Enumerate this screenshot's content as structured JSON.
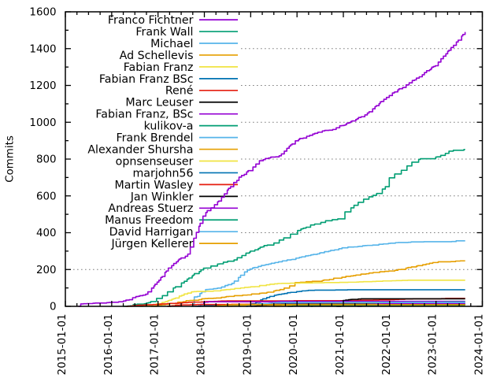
{
  "chart_data": {
    "type": "line",
    "title": "",
    "xlabel": "",
    "ylabel": "Commits",
    "xlim": [
      "2015-01-01",
      "2024-01-01"
    ],
    "ylim": [
      0,
      1600
    ],
    "grid": true,
    "grid_style": "dotted",
    "legend_position": "top-left-inside",
    "x_tick_labels": [
      "2015-01-01",
      "2016-01-01",
      "2017-01-01",
      "2018-01-01",
      "2019-01-01",
      "2020-01-01",
      "2021-01-01",
      "2022-01-01",
      "2023-01-01",
      "2024-01-01"
    ],
    "y_tick_labels": [
      "0",
      "200",
      "400",
      "600",
      "800",
      "1000",
      "1200",
      "1400",
      "1600"
    ],
    "x_minor_ticks_per_year": 4,
    "y_minor_tick_step": 100,
    "data_end_year": 2023.63,
    "series": [
      {
        "name": "Franco Fichtner",
        "color": "#9400d3",
        "jitter": 2.2,
        "seed": 11,
        "points": [
          [
            2015.28,
            0
          ],
          [
            2015.33,
            12
          ],
          [
            2015.6,
            16
          ],
          [
            2016.15,
            22
          ],
          [
            2016.4,
            40
          ],
          [
            2016.75,
            70
          ],
          [
            2017.0,
            135
          ],
          [
            2017.2,
            200
          ],
          [
            2017.5,
            264
          ],
          [
            2017.62,
            274
          ],
          [
            2017.8,
            385
          ],
          [
            2018.0,
            505
          ],
          [
            2018.3,
            570
          ],
          [
            2018.5,
            635
          ],
          [
            2018.75,
            700
          ],
          [
            2019.0,
            745
          ],
          [
            2019.2,
            790
          ],
          [
            2019.35,
            806
          ],
          [
            2019.6,
            815
          ],
          [
            2019.75,
            850
          ],
          [
            2020.0,
            905
          ],
          [
            2020.5,
            948
          ],
          [
            2020.8,
            965
          ],
          [
            2021.0,
            985
          ],
          [
            2021.15,
            1000
          ],
          [
            2021.5,
            1045
          ],
          [
            2021.75,
            1100
          ],
          [
            2022.0,
            1147
          ],
          [
            2022.5,
            1226
          ],
          [
            2023.0,
            1311
          ],
          [
            2023.31,
            1400
          ],
          [
            2023.5,
            1455
          ],
          [
            2023.63,
            1490
          ]
        ],
        "step": 3.6
      },
      {
        "name": "Frank Wall",
        "color": "#009e73",
        "jitter": 2.6,
        "seed": 22,
        "points": [
          [
            2016.24,
            0
          ],
          [
            2016.5,
            8
          ],
          [
            2016.8,
            20
          ],
          [
            2017.0,
            45
          ],
          [
            2017.3,
            95
          ],
          [
            2017.6,
            145
          ],
          [
            2017.94,
            200
          ],
          [
            2018.2,
            225
          ],
          [
            2018.45,
            240
          ],
          [
            2018.6,
            250
          ],
          [
            2018.8,
            272
          ],
          [
            2019.0,
            300
          ],
          [
            2019.5,
            345
          ],
          [
            2019.8,
            385
          ],
          [
            2020.0,
            410
          ],
          [
            2020.3,
            440
          ],
          [
            2020.6,
            465
          ],
          [
            2020.75,
            470
          ],
          [
            2020.95,
            475
          ],
          [
            2021.05,
            520
          ],
          [
            2021.3,
            560
          ],
          [
            2021.5,
            590
          ],
          [
            2021.7,
            610
          ],
          [
            2021.9,
            645
          ],
          [
            2022.0,
            700
          ],
          [
            2022.2,
            730
          ],
          [
            2022.4,
            770
          ],
          [
            2022.55,
            800
          ],
          [
            2022.95,
            803
          ],
          [
            2023.1,
            822
          ],
          [
            2023.25,
            840
          ],
          [
            2023.4,
            848
          ],
          [
            2023.63,
            852
          ]
        ],
        "step": 8.0
      },
      {
        "name": "Michael",
        "color": "#56b4e9",
        "jitter": 1.1,
        "seed": 33,
        "points": [
          [
            2017.72,
            0
          ],
          [
            2017.78,
            50
          ],
          [
            2017.85,
            55
          ],
          [
            2017.98,
            87
          ],
          [
            2018.3,
            100
          ],
          [
            2018.6,
            125
          ],
          [
            2018.75,
            160
          ],
          [
            2018.9,
            195
          ],
          [
            2019.0,
            205
          ],
          [
            2019.35,
            228
          ],
          [
            2019.7,
            246
          ],
          [
            2020.0,
            262
          ],
          [
            2020.5,
            290
          ],
          [
            2021.0,
            318
          ],
          [
            2021.4,
            327
          ],
          [
            2021.9,
            340
          ],
          [
            2022.4,
            349
          ],
          [
            2023.0,
            351
          ],
          [
            2023.38,
            351
          ],
          [
            2023.42,
            356
          ],
          [
            2023.63,
            356
          ]
        ],
        "step": 4.5
      },
      {
        "name": "Ad Schellevis",
        "color": "#e69f00",
        "jitter": 1.3,
        "seed": 44,
        "points": [
          [
            2016.85,
            0
          ],
          [
            2017.0,
            6
          ],
          [
            2017.3,
            15
          ],
          [
            2017.6,
            30
          ],
          [
            2018.0,
            40
          ],
          [
            2018.6,
            55
          ],
          [
            2019.0,
            65
          ],
          [
            2019.5,
            82
          ],
          [
            2019.75,
            100
          ],
          [
            2019.95,
            128
          ],
          [
            2020.45,
            137
          ],
          [
            2021.0,
            160
          ],
          [
            2021.5,
            178
          ],
          [
            2022.2,
            200
          ],
          [
            2022.6,
            220
          ],
          [
            2023.0,
            240
          ],
          [
            2023.3,
            244
          ],
          [
            2023.63,
            247
          ]
        ],
        "step": 6.5
      },
      {
        "name": "Fabian Franz",
        "color": "#f0e442",
        "jitter": 1.0,
        "seed": 55,
        "points": [
          [
            2016.6,
            0
          ],
          [
            2016.8,
            5
          ],
          [
            2017.0,
            15
          ],
          [
            2017.24,
            32
          ],
          [
            2017.5,
            60
          ],
          [
            2017.7,
            78
          ],
          [
            2017.8,
            80
          ],
          [
            2018.2,
            82
          ],
          [
            2018.5,
            92
          ],
          [
            2018.8,
            100
          ],
          [
            2019.0,
            105
          ],
          [
            2019.4,
            118
          ],
          [
            2019.6,
            124
          ],
          [
            2020.0,
            126
          ],
          [
            2020.5,
            128
          ],
          [
            2021.0,
            130
          ],
          [
            2021.5,
            133
          ],
          [
            2022.0,
            138
          ],
          [
            2022.4,
            142
          ],
          [
            2023.63,
            142
          ]
        ],
        "step": 5.0
      },
      {
        "name": "Fabian Franz BSc",
        "color": "#0072b2",
        "jitter": 0.9,
        "seed": 66,
        "points": [
          [
            2018.9,
            0
          ],
          [
            2019.1,
            20
          ],
          [
            2019.3,
            45
          ],
          [
            2019.6,
            65
          ],
          [
            2019.9,
            76
          ],
          [
            2020.2,
            86
          ],
          [
            2020.6,
            88
          ],
          [
            2021.26,
            90
          ],
          [
            2023.63,
            90
          ]
        ],
        "step": 4.0
      },
      {
        "name": "René",
        "color": "#e51e10",
        "jitter": 0.5,
        "seed": 77,
        "points": [
          [
            2016.3,
            0
          ],
          [
            2016.6,
            6
          ],
          [
            2017.0,
            12
          ],
          [
            2017.5,
            19
          ],
          [
            2018.0,
            25
          ],
          [
            2018.5,
            30
          ],
          [
            2019.0,
            30
          ],
          [
            2021.0,
            31
          ],
          [
            2021.64,
            33
          ],
          [
            2022.0,
            36
          ],
          [
            2022.5,
            41
          ],
          [
            2023.1,
            41
          ],
          [
            2023.2,
            43
          ],
          [
            2023.63,
            43
          ]
        ],
        "step": 5.0
      },
      {
        "name": "Marc Leuser",
        "color": "#000000",
        "jitter": 0.4,
        "seed": 88,
        "points": [
          [
            2020.85,
            0
          ],
          [
            2020.95,
            30
          ],
          [
            2021.1,
            36
          ],
          [
            2021.4,
            41
          ],
          [
            2023.63,
            41
          ]
        ],
        "step": 5.0
      },
      {
        "name": "Fabian Franz, BSc",
        "color": "#9400d3",
        "jitter": 0.4,
        "seed": 99,
        "points": [
          [
            2017.88,
            0
          ],
          [
            2017.95,
            18
          ],
          [
            2018.05,
            25
          ],
          [
            2019.5,
            25
          ],
          [
            2019.6,
            27
          ],
          [
            2023.63,
            27
          ]
        ],
        "step": 5.0
      },
      {
        "name": "kulikov-a",
        "color": "#009e73",
        "jitter": 0.4,
        "seed": 110,
        "points": [
          [
            2020.3,
            0
          ],
          [
            2020.5,
            8
          ],
          [
            2020.8,
            13
          ],
          [
            2021.1,
            18
          ],
          [
            2021.4,
            20
          ],
          [
            2022.0,
            22
          ],
          [
            2023.63,
            24
          ]
        ],
        "step": 5.0
      },
      {
        "name": "Frank Brendel",
        "color": "#56b4e9",
        "jitter": 0.4,
        "seed": 121,
        "points": [
          [
            2018.75,
            0
          ],
          [
            2019.0,
            10
          ],
          [
            2019.5,
            15
          ],
          [
            2020.0,
            18
          ],
          [
            2020.8,
            20
          ],
          [
            2021.5,
            22
          ],
          [
            2023.63,
            22
          ]
        ],
        "step": 5.0
      },
      {
        "name": "Alexander Shursha",
        "color": "#e69f00",
        "jitter": 0.4,
        "seed": 132,
        "points": [
          [
            2019.5,
            0
          ],
          [
            2019.8,
            8
          ],
          [
            2020.2,
            14
          ],
          [
            2020.8,
            17
          ],
          [
            2021.3,
            19
          ],
          [
            2023.63,
            20
          ]
        ],
        "step": 5.0
      },
      {
        "name": "opnsenseuser",
        "color": "#f0e442",
        "jitter": 0.4,
        "seed": 143,
        "points": [
          [
            2018.5,
            0
          ],
          [
            2018.7,
            4
          ],
          [
            2019.0,
            6
          ],
          [
            2019.5,
            6
          ],
          [
            2023.63,
            6
          ]
        ],
        "step": 5.0
      },
      {
        "name": "marjohn56",
        "color": "#0072b2",
        "jitter": 0.4,
        "seed": 154,
        "points": [
          [
            2017.8,
            0
          ],
          [
            2018.2,
            6
          ],
          [
            2018.8,
            10
          ],
          [
            2019.2,
            13
          ],
          [
            2020.0,
            13
          ],
          [
            2023.63,
            13
          ]
        ],
        "step": 5.0
      },
      {
        "name": "Martin Wasley",
        "color": "#e51e10",
        "jitter": 0.4,
        "seed": 165,
        "points": [
          [
            2017.2,
            0
          ],
          [
            2017.4,
            6
          ],
          [
            2017.6,
            8
          ],
          [
            2018.0,
            10
          ],
          [
            2019.0,
            11
          ],
          [
            2023.63,
            11
          ]
        ],
        "step": 5.0
      },
      {
        "name": "Jan Winkler",
        "color": "#000000",
        "jitter": 0.4,
        "seed": 176,
        "points": [
          [
            2019.0,
            0
          ],
          [
            2019.2,
            6
          ],
          [
            2019.4,
            9
          ],
          [
            2020.0,
            10
          ],
          [
            2023.63,
            10
          ]
        ],
        "step": 5.0
      },
      {
        "name": "Andreas Stuerz",
        "color": "#9400d3",
        "jitter": 0.4,
        "seed": 187,
        "points": [
          [
            2021.3,
            0
          ],
          [
            2021.5,
            8
          ],
          [
            2021.8,
            14
          ],
          [
            2022.1,
            16
          ],
          [
            2023.63,
            16
          ]
        ],
        "step": 5.0
      },
      {
        "name": "Manus Freedom",
        "color": "#009e73",
        "jitter": 0.3,
        "seed": 198,
        "points": [
          [
            2019.8,
            0
          ],
          [
            2020.0,
            3
          ],
          [
            2020.5,
            4
          ],
          [
            2022.3,
            6
          ],
          [
            2023.63,
            6
          ]
        ],
        "step": 5.0
      },
      {
        "name": "David Harrigan",
        "color": "#56b4e9",
        "jitter": 0.3,
        "seed": 209,
        "points": [
          [
            2018.9,
            0
          ],
          [
            2019.1,
            10
          ],
          [
            2019.4,
            17
          ],
          [
            2019.6,
            21
          ],
          [
            2023.63,
            21
          ]
        ],
        "step": 5.0
      },
      {
        "name": "Jürgen Kellerer",
        "color": "#e69f00",
        "jitter": 0.3,
        "seed": 220,
        "points": [
          [
            2018.2,
            0
          ],
          [
            2018.4,
            6
          ],
          [
            2018.6,
            9
          ],
          [
            2019.0,
            9
          ],
          [
            2023.63,
            9
          ]
        ],
        "step": 5.0
      }
    ]
  },
  "layout_colors": {
    "background": "#ffffff",
    "border": "#000000",
    "grid": "#7f7f7f",
    "text": "#000000"
  }
}
